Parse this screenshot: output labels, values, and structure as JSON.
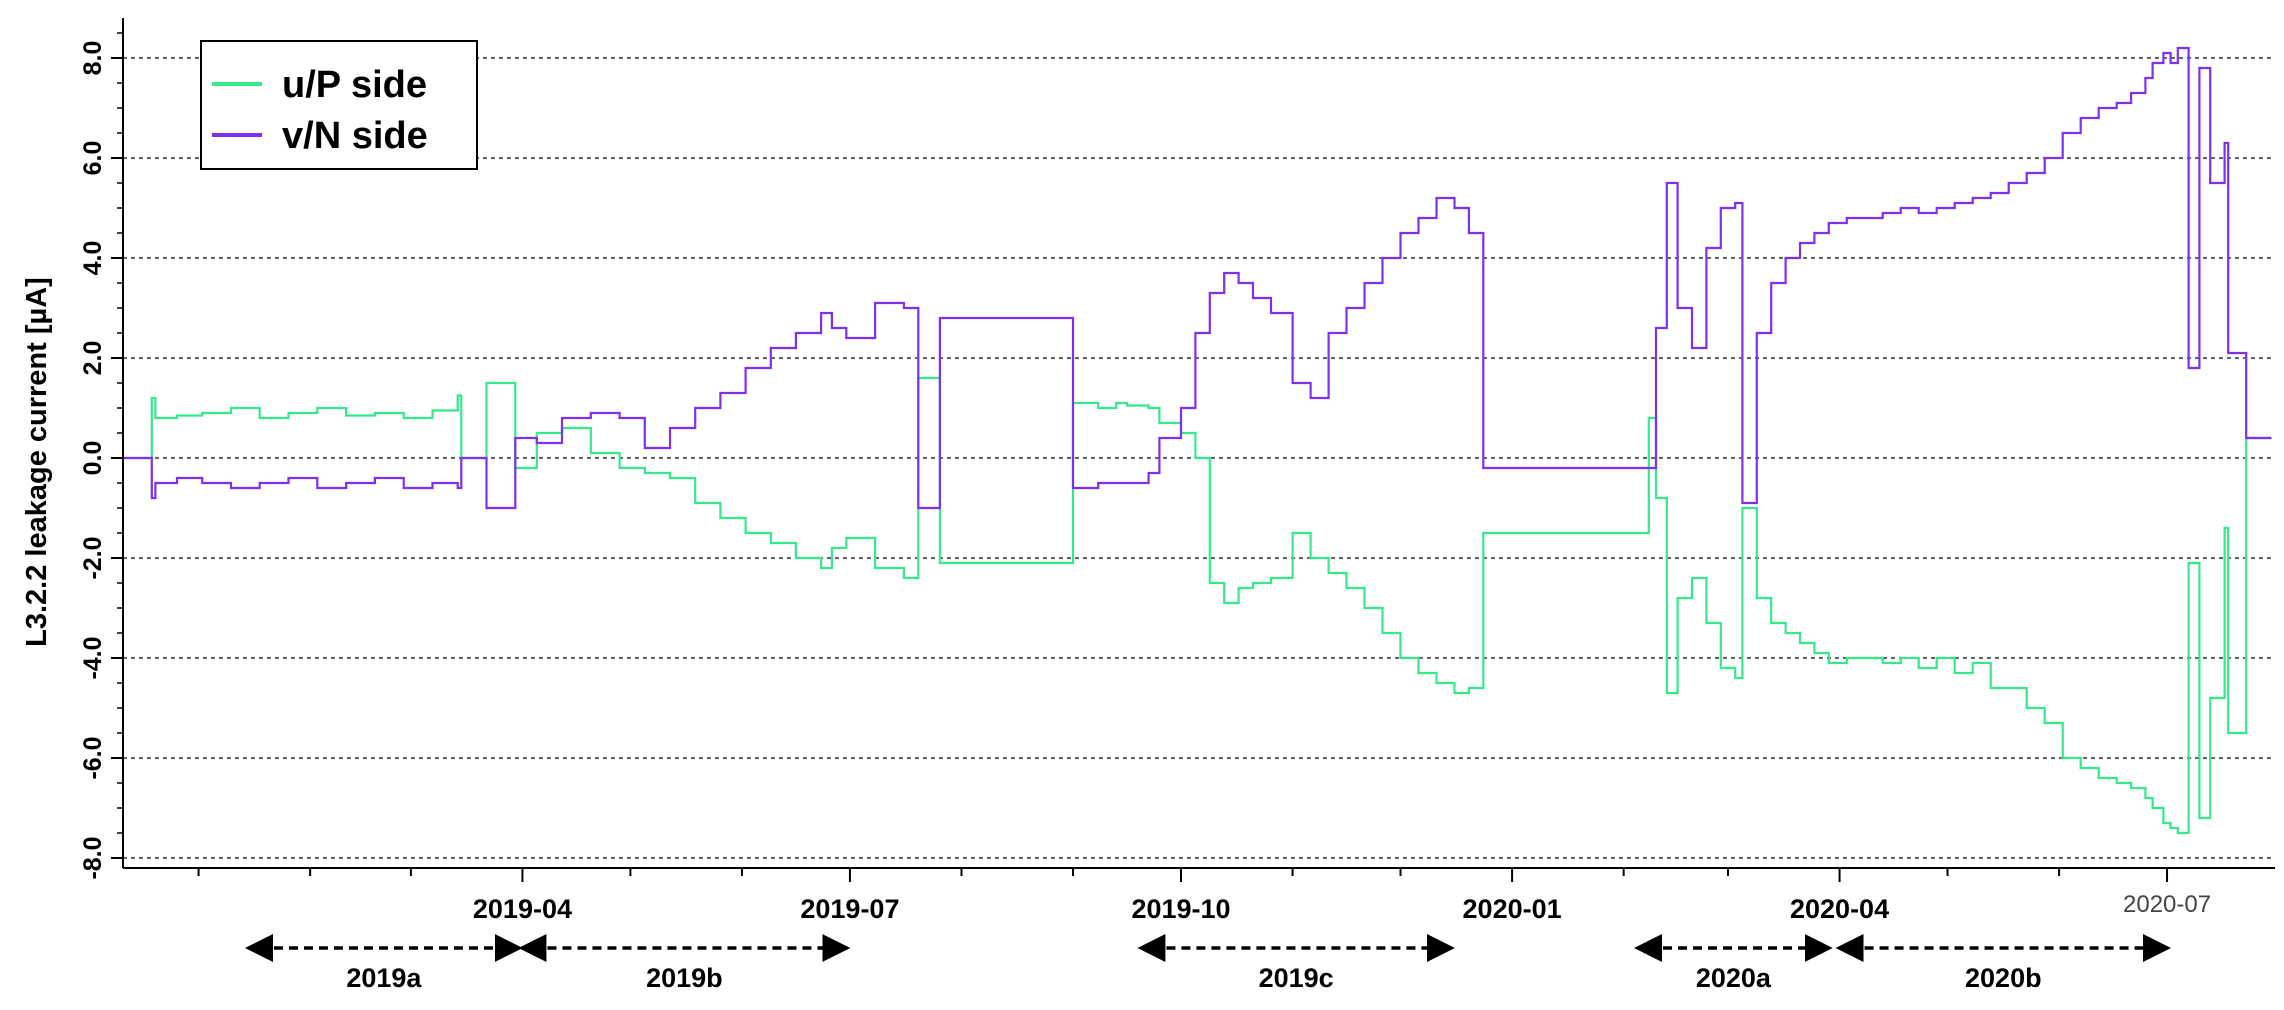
{
  "chart_data": {
    "type": "line",
    "ylabel": "L3.2.2 leakage current [µA]",
    "xlabel": "",
    "xlim": [
      "2018-12-11",
      "2020-07-31"
    ],
    "ylim": [
      -8.2,
      8.8
    ],
    "grid": "horizontal dotted lines at major y ticks",
    "legend_position": "top-left",
    "y_ticks": [
      8.0,
      6.0,
      4.0,
      2.0,
      0.0,
      -2.0,
      -4.0,
      -6.0,
      -8.0
    ],
    "y_tick_labels": [
      "8.0",
      "6.0",
      "4.0",
      "2.0",
      "0.0",
      "-2.0",
      "-4.0",
      "-6.0",
      "-8.0"
    ],
    "x_ticks": [
      {
        "date": "2019-04-01",
        "label": "2019-04"
      },
      {
        "date": "2019-07-01",
        "label": "2019-07"
      },
      {
        "date": "2019-10-01",
        "label": "2019-10"
      },
      {
        "date": "2020-01-01",
        "label": "2020-01"
      },
      {
        "date": "2020-04-01",
        "label": "2020-04"
      },
      {
        "date": "2020-07-01",
        "label": "2020-07"
      }
    ],
    "periods": [
      {
        "label": "2019a",
        "start": "2019-01-15",
        "end": "2019-03-31"
      },
      {
        "label": "2019b",
        "start": "2019-04-01",
        "end": "2019-06-30"
      },
      {
        "label": "2019c",
        "start": "2019-09-20",
        "end": "2019-12-15"
      },
      {
        "label": "2020a",
        "start": "2020-02-05",
        "end": "2020-03-29"
      },
      {
        "label": "2020b",
        "start": "2020-04-01",
        "end": "2020-07-01"
      }
    ],
    "series": [
      {
        "name": "u/P side",
        "color": "#35e88a",
        "x": [
          "2018-12-11",
          "2018-12-19",
          "2018-12-20",
          "2018-12-26",
          "2019-01-02",
          "2019-01-10",
          "2019-01-18",
          "2019-01-26",
          "2019-02-03",
          "2019-02-11",
          "2019-02-19",
          "2019-02-27",
          "2019-03-07",
          "2019-03-14",
          "2019-03-15",
          "2019-03-22",
          "2019-03-30",
          "2019-04-05",
          "2019-04-12",
          "2019-04-20",
          "2019-04-28",
          "2019-05-05",
          "2019-05-12",
          "2019-05-19",
          "2019-05-26",
          "2019-06-02",
          "2019-06-09",
          "2019-06-16",
          "2019-06-23",
          "2019-06-26",
          "2019-06-30",
          "2019-07-08",
          "2019-07-16",
          "2019-07-20",
          "2019-07-26",
          "2019-09-01",
          "2019-09-08",
          "2019-09-13",
          "2019-09-16",
          "2019-09-22",
          "2019-09-25",
          "2019-10-01",
          "2019-10-05",
          "2019-10-09",
          "2019-10-13",
          "2019-10-17",
          "2019-10-21",
          "2019-10-26",
          "2019-11-01",
          "2019-11-06",
          "2019-11-11",
          "2019-11-16",
          "2019-11-21",
          "2019-11-26",
          "2019-12-01",
          "2019-12-06",
          "2019-12-11",
          "2019-12-16",
          "2019-12-20",
          "2019-12-24",
          "2020-02-08",
          "2020-02-10",
          "2020-02-13",
          "2020-02-16",
          "2020-02-20",
          "2020-02-24",
          "2020-02-28",
          "2020-03-03",
          "2020-03-05",
          "2020-03-09",
          "2020-03-13",
          "2020-03-17",
          "2020-03-21",
          "2020-03-25",
          "2020-03-29",
          "2020-04-03",
          "2020-04-08",
          "2020-04-13",
          "2020-04-18",
          "2020-04-23",
          "2020-04-28",
          "2020-05-03",
          "2020-05-08",
          "2020-05-13",
          "2020-05-18",
          "2020-05-23",
          "2020-05-28",
          "2020-06-02",
          "2020-06-07",
          "2020-06-12",
          "2020-06-17",
          "2020-06-21",
          "2020-06-25",
          "2020-06-27",
          "2020-06-30",
          "2020-07-02",
          "2020-07-04",
          "2020-07-07",
          "2020-07-10",
          "2020-07-13",
          "2020-07-17",
          "2020-07-18",
          "2020-07-23",
          "2020-07-30"
        ],
        "y": [
          0.0,
          1.2,
          0.8,
          0.85,
          0.9,
          1.0,
          0.8,
          0.9,
          1.0,
          0.85,
          0.9,
          0.8,
          0.95,
          1.25,
          0.0,
          1.5,
          -0.2,
          0.5,
          0.6,
          0.1,
          -0.2,
          -0.3,
          -0.4,
          -0.9,
          -1.2,
          -1.5,
          -1.7,
          -2.0,
          -2.2,
          -1.8,
          -1.6,
          -2.2,
          -2.4,
          1.6,
          -2.1,
          1.1,
          1.0,
          1.1,
          1.05,
          1.0,
          0.7,
          0.5,
          0.0,
          -2.5,
          -2.9,
          -2.6,
          -2.5,
          -2.4,
          -1.5,
          -2.0,
          -2.3,
          -2.6,
          -3.0,
          -3.5,
          -4.0,
          -4.3,
          -4.5,
          -4.7,
          -4.6,
          -1.5,
          0.8,
          -0.8,
          -4.7,
          -2.8,
          -2.4,
          -3.3,
          -4.2,
          -4.4,
          -1.0,
          -2.8,
          -3.3,
          -3.5,
          -3.7,
          -3.9,
          -4.1,
          -4.0,
          -4.0,
          -4.1,
          -4.0,
          -4.2,
          -4.0,
          -4.3,
          -4.1,
          -4.6,
          -4.6,
          -5.0,
          -5.3,
          -6.0,
          -6.2,
          -6.4,
          -6.5,
          -6.6,
          -6.8,
          -7.0,
          -7.3,
          -7.4,
          -7.5,
          -2.1,
          -7.2,
          -4.8,
          -1.4,
          -5.5,
          0.4,
          0.4
        ]
      },
      {
        "name": "v/N side",
        "color": "#7e2ff0",
        "x": [
          "2018-12-11",
          "2018-12-19",
          "2018-12-20",
          "2018-12-26",
          "2019-01-02",
          "2019-01-10",
          "2019-01-18",
          "2019-01-26",
          "2019-02-03",
          "2019-02-11",
          "2019-02-19",
          "2019-02-27",
          "2019-03-07",
          "2019-03-14",
          "2019-03-15",
          "2019-03-22",
          "2019-03-30",
          "2019-04-05",
          "2019-04-12",
          "2019-04-20",
          "2019-04-28",
          "2019-05-05",
          "2019-05-12",
          "2019-05-19",
          "2019-05-26",
          "2019-06-02",
          "2019-06-09",
          "2019-06-16",
          "2019-06-23",
          "2019-06-26",
          "2019-06-30",
          "2019-07-08",
          "2019-07-16",
          "2019-07-20",
          "2019-07-26",
          "2019-09-01",
          "2019-09-08",
          "2019-09-13",
          "2019-09-16",
          "2019-09-22",
          "2019-09-25",
          "2019-10-01",
          "2019-10-05",
          "2019-10-09",
          "2019-10-13",
          "2019-10-17",
          "2019-10-21",
          "2019-10-26",
          "2019-11-01",
          "2019-11-06",
          "2019-11-11",
          "2019-11-16",
          "2019-11-21",
          "2019-11-26",
          "2019-12-01",
          "2019-12-06",
          "2019-12-11",
          "2019-12-16",
          "2019-12-20",
          "2019-12-24",
          "2020-02-08",
          "2020-02-10",
          "2020-02-13",
          "2020-02-16",
          "2020-02-20",
          "2020-02-24",
          "2020-02-28",
          "2020-03-03",
          "2020-03-05",
          "2020-03-09",
          "2020-03-13",
          "2020-03-17",
          "2020-03-21",
          "2020-03-25",
          "2020-03-29",
          "2020-04-03",
          "2020-04-08",
          "2020-04-13",
          "2020-04-18",
          "2020-04-23",
          "2020-04-28",
          "2020-05-03",
          "2020-05-08",
          "2020-05-13",
          "2020-05-18",
          "2020-05-23",
          "2020-05-28",
          "2020-06-02",
          "2020-06-07",
          "2020-06-12",
          "2020-06-17",
          "2020-06-21",
          "2020-06-25",
          "2020-06-27",
          "2020-06-30",
          "2020-07-02",
          "2020-07-04",
          "2020-07-07",
          "2020-07-10",
          "2020-07-13",
          "2020-07-17",
          "2020-07-18",
          "2020-07-23",
          "2020-07-30"
        ],
        "y": [
          0.0,
          -0.8,
          -0.5,
          -0.4,
          -0.5,
          -0.6,
          -0.5,
          -0.4,
          -0.6,
          -0.5,
          -0.4,
          -0.6,
          -0.5,
          -0.6,
          0.0,
          -1.0,
          0.4,
          0.3,
          0.8,
          0.9,
          0.8,
          0.2,
          0.6,
          1.0,
          1.3,
          1.8,
          2.2,
          2.5,
          2.9,
          2.6,
          2.4,
          3.1,
          3.0,
          -1.0,
          2.8,
          -0.6,
          -0.5,
          -0.5,
          -0.5,
          -0.3,
          0.4,
          1.0,
          2.5,
          3.3,
          3.7,
          3.5,
          3.2,
          2.9,
          1.5,
          1.2,
          2.5,
          3.0,
          3.5,
          4.0,
          4.5,
          4.8,
          5.2,
          5.0,
          4.5,
          -0.2,
          -0.2,
          2.6,
          5.5,
          3.0,
          2.2,
          4.2,
          5.0,
          5.1,
          -0.9,
          2.5,
          3.5,
          4.0,
          4.3,
          4.5,
          4.7,
          4.8,
          4.8,
          4.9,
          5.0,
          4.9,
          5.0,
          5.1,
          5.2,
          5.3,
          5.5,
          5.7,
          6.0,
          6.5,
          6.8,
          7.0,
          7.1,
          7.3,
          7.6,
          7.9,
          8.1,
          7.9,
          8.2,
          1.8,
          7.8,
          5.5,
          6.3,
          2.1,
          0.4,
          0.4
        ]
      }
    ]
  }
}
